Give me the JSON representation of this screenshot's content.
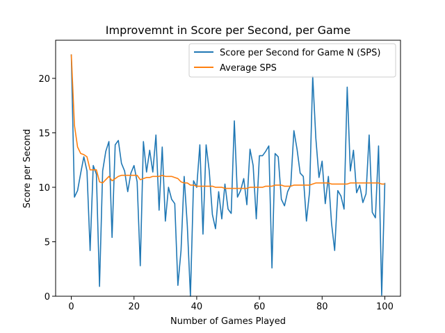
{
  "chart_data": {
    "type": "line",
    "title": "Improvemnt in Score per Second, per Game",
    "xlabel": "Number of Games Played",
    "ylabel": "Score per Second",
    "xlim": [
      -5,
      105
    ],
    "ylim": [
      0,
      23.5
    ],
    "xticks": [
      0,
      20,
      40,
      60,
      80,
      100
    ],
    "yticks": [
      0,
      5,
      10,
      15,
      20
    ],
    "grid": false,
    "legend_position": "upper right",
    "x": [
      0,
      1,
      2,
      3,
      4,
      5,
      6,
      7,
      8,
      9,
      10,
      11,
      12,
      13,
      14,
      15,
      16,
      17,
      18,
      19,
      20,
      21,
      22,
      23,
      24,
      25,
      26,
      27,
      28,
      29,
      30,
      31,
      32,
      33,
      34,
      35,
      36,
      37,
      38,
      39,
      40,
      41,
      42,
      43,
      44,
      45,
      46,
      47,
      48,
      49,
      50,
      51,
      52,
      53,
      54,
      55,
      56,
      57,
      58,
      59,
      60,
      61,
      62,
      63,
      64,
      65,
      66,
      67,
      68,
      69,
      70,
      71,
      72,
      73,
      74,
      75,
      76,
      77,
      78,
      79,
      80,
      81,
      82,
      83,
      84,
      85,
      86,
      87,
      88,
      89,
      90,
      91,
      92,
      93,
      94,
      95,
      96,
      97,
      98,
      99,
      100
    ],
    "series": [
      {
        "name": "Score per Second for Game N (SPS)",
        "color": "#1f77b4",
        "values": [
          22.2,
          9.1,
          9.7,
          11.3,
          12.8,
          11.5,
          4.2,
          12.0,
          11.2,
          0.9,
          11.5,
          13.3,
          14.2,
          5.4,
          13.9,
          14.3,
          12.2,
          11.5,
          9.6,
          11.3,
          12.0,
          10.5,
          2.8,
          14.2,
          11.4,
          13.4,
          11.4,
          14.8,
          7.9,
          13.7,
          6.9,
          10.0,
          8.9,
          8.5,
          1.0,
          4.2,
          11.0,
          6.5,
          0.0,
          10.6,
          10.0,
          13.9,
          5.7,
          13.9,
          11.5,
          7.5,
          6.2,
          9.6,
          7.1,
          10.3,
          8.0,
          7.6,
          16.1,
          9.1,
          9.7,
          10.8,
          8.4,
          13.5,
          12.0,
          7.1,
          12.9,
          12.9,
          13.3,
          13.8,
          2.6,
          13.1,
          12.8,
          8.9,
          8.3,
          9.6,
          10.2,
          15.2,
          13.5,
          11.3,
          11.0,
          6.9,
          9.6,
          20.2,
          14.5,
          10.9,
          12.4,
          8.5,
          11.0,
          6.7,
          4.2,
          9.7,
          9.2,
          8.0,
          19.2,
          11.5,
          13.4,
          9.5,
          10.2,
          8.6,
          9.4,
          14.8,
          7.7,
          7.2,
          13.8,
          0.1,
          10.4
        ]
      },
      {
        "name": "Average SPS",
        "color": "#ff7f0e",
        "values": [
          22.2,
          15.7,
          13.7,
          13.1,
          13.0,
          12.8,
          11.6,
          11.6,
          11.6,
          10.5,
          10.4,
          10.7,
          11.0,
          10.6,
          10.8,
          11.0,
          11.1,
          11.1,
          11.1,
          11.1,
          11.1,
          11.1,
          10.7,
          10.8,
          10.9,
          10.9,
          11.0,
          11.0,
          11.0,
          11.1,
          11.0,
          11.0,
          11.0,
          10.9,
          10.8,
          10.5,
          10.4,
          10.4,
          10.2,
          10.2,
          10.1,
          10.1,
          10.1,
          10.1,
          10.1,
          10.1,
          10.0,
          10.0,
          10.0,
          9.9,
          9.9,
          9.9,
          9.9,
          9.9,
          9.9,
          9.9,
          9.9,
          10.0,
          10.0,
          10.0,
          10.0,
          10.0,
          10.1,
          10.1,
          10.1,
          10.2,
          10.2,
          10.2,
          10.1,
          10.1,
          10.1,
          10.2,
          10.2,
          10.2,
          10.2,
          10.2,
          10.2,
          10.3,
          10.4,
          10.4,
          10.4,
          10.4,
          10.4,
          10.3,
          10.3,
          10.3,
          10.3,
          10.3,
          10.3,
          10.4,
          10.4,
          10.4,
          10.4,
          10.4,
          10.4,
          10.4,
          10.4,
          10.4,
          10.4,
          10.3,
          10.3
        ]
      }
    ]
  }
}
